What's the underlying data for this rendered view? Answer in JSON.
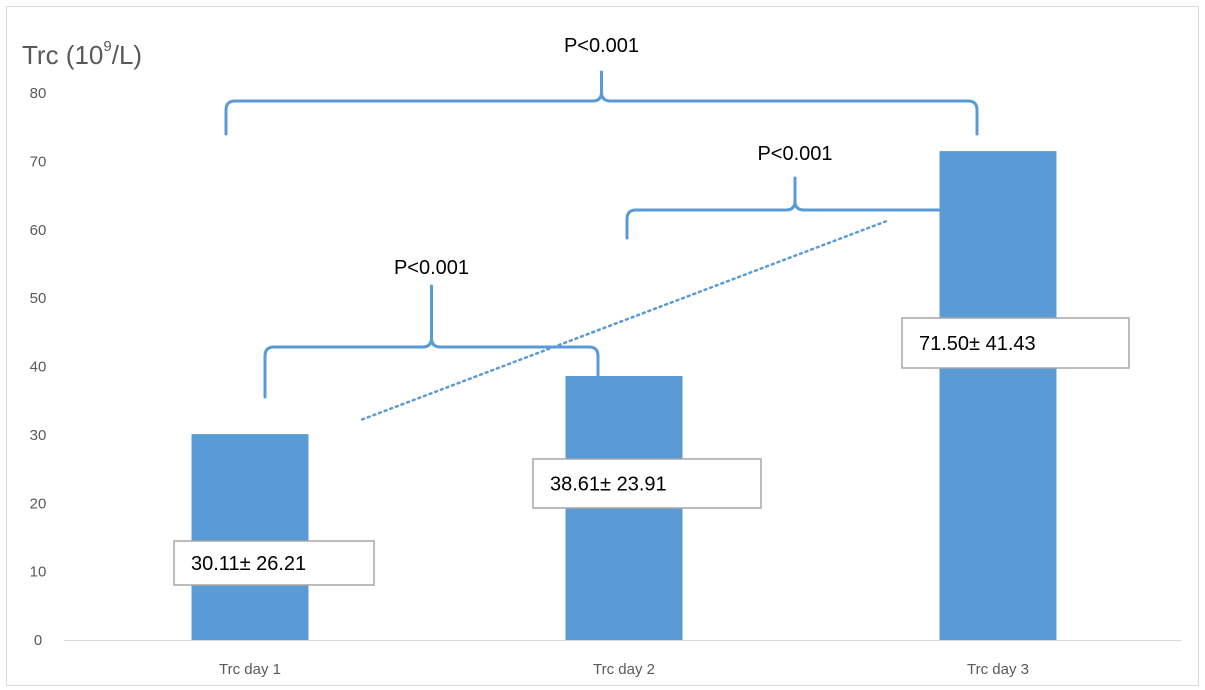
{
  "chart_data": {
    "type": "bar",
    "ylabel_main": "Trc (10",
    "ylabel_sup": "9",
    "ylabel_tail": "/L)",
    "categories": [
      "Trc day 1",
      "Trc day 2",
      "Trc day 3"
    ],
    "values": [
      30.11,
      38.61,
      71.5
    ],
    "value_labels": [
      "30.11± 26.21",
      "38.61± 23.91",
      "71.50± 41.43"
    ],
    "ylim": [
      0,
      80
    ],
    "yticks": [
      0,
      10,
      20,
      30,
      40,
      50,
      60,
      70,
      80
    ],
    "grid": false,
    "trendline": "linear, dotted",
    "bar_color": "#5b9bd5",
    "bracket_color": "#5b9bd5",
    "comparisons": [
      {
        "from": 0,
        "to": 2,
        "label": "P<0.001"
      },
      {
        "from": 1,
        "to": 2,
        "label": "P<0.001"
      },
      {
        "from": 0,
        "to": 1,
        "label": "P<0.001"
      }
    ]
  }
}
